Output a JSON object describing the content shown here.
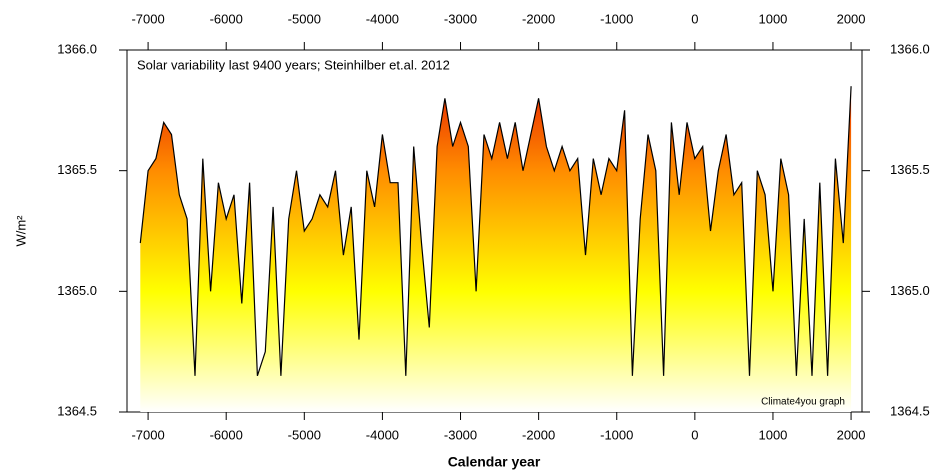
{
  "chart_data": {
    "type": "area",
    "title": "Solar variability last 9400 years; Steinhilber et.al. 2012",
    "y_label": "W/m²",
    "x_label": "Calendar year",
    "credit": "Climate4you graph",
    "line_color": "#000000",
    "fill_colors": [
      "#ffffff",
      "#ffff00",
      "#ff8c00",
      "#e00000"
    ],
    "credit_color": "#0000ff",
    "xlim": [
      -7270,
      2140
    ],
    "ylim": [
      1364.5,
      1366.0
    ],
    "xticks": [
      -7000,
      -6000,
      -5000,
      -4000,
      -3000,
      -2000,
      -1000,
      0,
      1000,
      2000
    ],
    "yticks": [
      {
        "value": 1364.5,
        "label": "1364.5"
      },
      {
        "value": 1365,
        "label": "1365.0"
      },
      {
        "value": 1365.5,
        "label": "1365.5"
      },
      {
        "value": 1366,
        "label": "1366.0"
      }
    ],
    "x": [
      -7100,
      -7000,
      -6900,
      -6800,
      -6700,
      -6600,
      -6500,
      -6400,
      -6300,
      -6200,
      -6100,
      -6000,
      -5900,
      -5800,
      -5700,
      -5600,
      -5500,
      -5400,
      -5300,
      -5200,
      -5100,
      -5000,
      -4900,
      -4800,
      -4700,
      -4600,
      -4500,
      -4400,
      -4300,
      -4200,
      -4100,
      -4000,
      -3900,
      -3800,
      -3700,
      -3600,
      -3500,
      -3400,
      -3300,
      -3200,
      -3100,
      -3000,
      -2900,
      -2800,
      -2700,
      -2600,
      -2500,
      -2400,
      -2300,
      -2200,
      -2100,
      -2000,
      -1900,
      -1800,
      -1700,
      -1600,
      -1500,
      -1400,
      -1300,
      -1200,
      -1100,
      -1000,
      -900,
      -800,
      -700,
      -600,
      -500,
      -400,
      -300,
      -200,
      -100,
      0,
      100,
      200,
      300,
      400,
      500,
      600,
      700,
      800,
      900,
      1000,
      1100,
      1200,
      1300,
      1400,
      1500,
      1600,
      1700,
      1800,
      1900,
      2000
    ],
    "values": [
      1365.2,
      1365.5,
      1365.55,
      1365.7,
      1365.65,
      1365.4,
      1365.3,
      1364.65,
      1365.55,
      1365.0,
      1365.45,
      1365.3,
      1365.4,
      1364.95,
      1365.45,
      1364.65,
      1364.75,
      1365.35,
      1364.65,
      1365.3,
      1365.5,
      1365.25,
      1365.3,
      1365.4,
      1365.35,
      1365.5,
      1365.15,
      1365.35,
      1364.8,
      1365.5,
      1365.35,
      1365.65,
      1365.45,
      1365.45,
      1364.65,
      1365.6,
      1365.2,
      1364.85,
      1365.6,
      1365.8,
      1365.6,
      1365.7,
      1365.6,
      1365.0,
      1365.65,
      1365.55,
      1365.7,
      1365.55,
      1365.7,
      1365.5,
      1365.65,
      1365.8,
      1365.6,
      1365.5,
      1365.6,
      1365.5,
      1365.55,
      1365.15,
      1365.55,
      1365.4,
      1365.55,
      1365.5,
      1365.75,
      1364.65,
      1365.3,
      1365.65,
      1365.5,
      1364.65,
      1365.7,
      1365.4,
      1365.7,
      1365.55,
      1365.6,
      1365.25,
      1365.5,
      1365.65,
      1365.4,
      1365.45,
      1364.65,
      1365.5,
      1365.4,
      1365.0,
      1365.55,
      1365.4,
      1364.65,
      1365.3,
      1364.65,
      1365.45,
      1364.65,
      1365.55,
      1365.2,
      1365.85
    ]
  }
}
